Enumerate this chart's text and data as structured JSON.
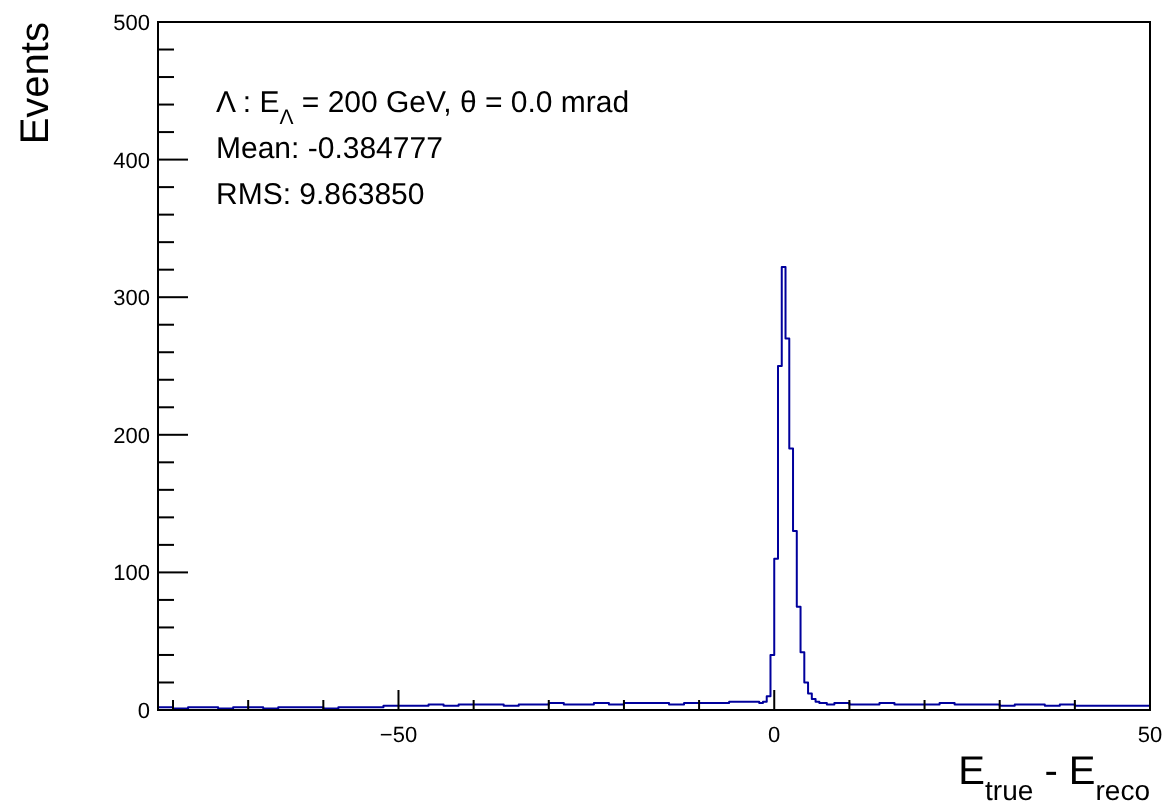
{
  "chart_data": {
    "type": "histogram",
    "xlabel": "E$_{true}$ - E$_{reco}$",
    "ylabel": "Events",
    "color": "#00009c",
    "bins": [
      -82,
      -80,
      -78,
      -76,
      -74,
      -72,
      -70,
      -68,
      -66,
      -64,
      -62,
      -60,
      -58,
      -56,
      -54,
      -52,
      -50,
      -48,
      -46,
      -44,
      -42,
      -40,
      -38,
      -36,
      -34,
      -32,
      -30,
      -28,
      -26,
      -24,
      -22,
      -20,
      -18,
      -16,
      -14,
      -12,
      -10,
      -8,
      -6,
      -4,
      -2,
      -1.5,
      -1,
      -0.5,
      0,
      0.5,
      1,
      1.5,
      2,
      2.5,
      3,
      3.5,
      4,
      4.5,
      5,
      5.5,
      6,
      6.5,
      7,
      7.5,
      8,
      10,
      12,
      14,
      16,
      18,
      20,
      22,
      24,
      26,
      28,
      30,
      32,
      34,
      36,
      38,
      40,
      42,
      44,
      46,
      48,
      50
    ],
    "values": [
      2,
      1,
      2,
      2,
      1,
      2,
      2,
      1,
      2,
      2,
      2,
      1,
      2,
      2,
      2,
      3,
      3,
      3,
      4,
      3,
      4,
      4,
      4,
      3,
      4,
      4,
      5,
      4,
      4,
      5,
      4,
      5,
      5,
      5,
      4,
      5,
      5,
      5,
      6,
      6,
      5,
      6,
      10,
      40,
      110,
      250,
      322,
      270,
      190,
      130,
      75,
      42,
      20,
      12,
      8,
      6,
      5,
      5,
      4,
      4,
      5,
      4,
      4,
      5,
      4,
      4,
      4,
      5,
      4,
      4,
      4,
      3,
      4,
      4,
      3,
      4,
      3,
      3,
      3,
      3,
      3
    ],
    "xlim": [
      -82,
      50
    ],
    "xticks": [
      {
        "value": -80,
        "label": null
      },
      {
        "value": -70,
        "label": null
      },
      {
        "value": -60,
        "label": null
      },
      {
        "value": -50,
        "label": "−50"
      },
      {
        "value": -40,
        "label": null
      },
      {
        "value": -30,
        "label": null
      },
      {
        "value": -20,
        "label": null
      },
      {
        "value": -10,
        "label": null
      },
      0,
      {
        "value": 10,
        "label": null
      },
      {
        "value": 20,
        "label": null
      },
      {
        "value": 30,
        "label": null
      },
      {
        "value": 40,
        "label": null
      },
      50
    ],
    "ylim": [
      0,
      500
    ],
    "yticks": [
      0,
      {
        "value": 20,
        "label": null
      },
      {
        "value": 40,
        "label": null
      },
      {
        "value": 60,
        "label": null
      },
      {
        "value": 80,
        "label": null
      },
      100,
      {
        "value": 120,
        "label": null
      },
      {
        "value": 140,
        "label": null
      },
      {
        "value": 160,
        "label": null
      },
      {
        "value": 180,
        "label": null
      },
      200,
      {
        "value": 220,
        "label": null
      },
      {
        "value": 240,
        "label": null
      },
      {
        "value": 260,
        "label": null
      },
      {
        "value": 280,
        "label": null
      },
      300,
      {
        "value": 320,
        "label": null
      },
      {
        "value": 340,
        "label": null
      },
      {
        "value": 360,
        "label": null
      },
      {
        "value": 380,
        "label": null
      },
      400,
      {
        "value": 420,
        "label": null
      },
      {
        "value": 440,
        "label": null
      },
      {
        "value": 460,
        "label": null
      },
      {
        "value": 480,
        "label": null
      },
      500
    ],
    "annotations": [
      "Λ : E$_{Λ}$ = 200 GeV, θ = 0.0 mrad",
      "Mean: -0.384777",
      "RMS: 9.863850"
    ],
    "grid": false
  }
}
